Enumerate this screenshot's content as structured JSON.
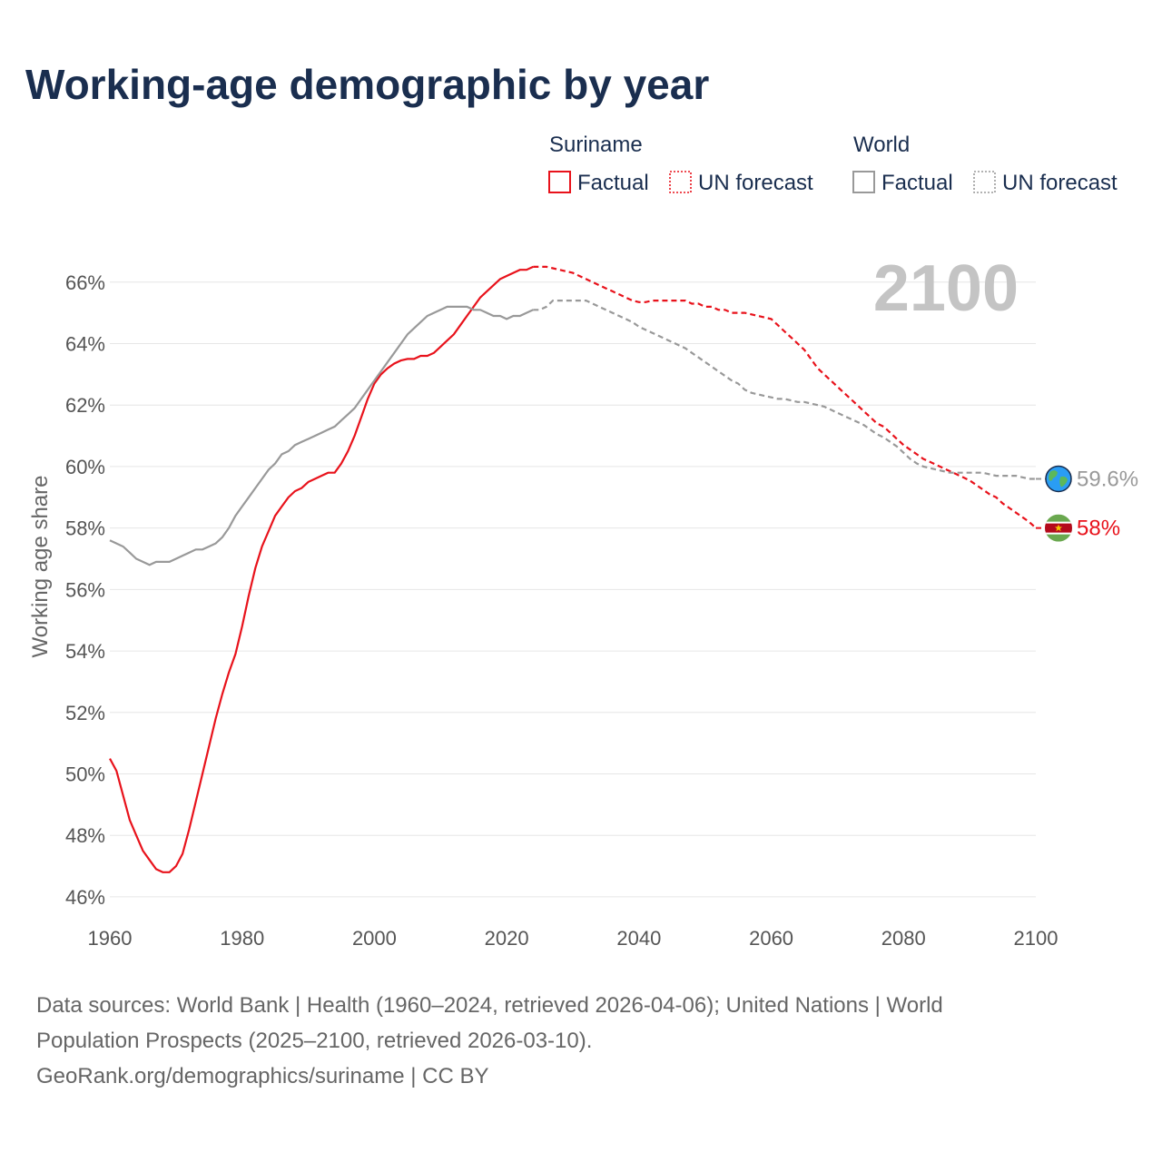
{
  "title": "Working-age demographic by year",
  "legend": {
    "groups": [
      {
        "name": "Suriname",
        "color": "#e8121b",
        "items": [
          "Factual",
          "UN forecast"
        ]
      },
      {
        "name": "World",
        "color": "#999999",
        "items": [
          "Factual",
          "UN forecast"
        ]
      }
    ]
  },
  "footer": {
    "line1": "Data sources: World Bank | Health (1960–2024, retrieved 2026-04-06); United Nations | World",
    "line2": "Population Prospects (2025–2100, retrieved 2026-03-10).",
    "line3": "GeoRank.org/demographics/suriname | CC BY"
  },
  "chart_data": {
    "type": "line",
    "title": "Working-age demographic by year",
    "year_label": "2100",
    "ylabel": "Working age share",
    "xlabel": "",
    "xlim": [
      1960,
      2100
    ],
    "ylim": [
      45.2,
      67.5
    ],
    "x_ticks": [
      1960,
      1980,
      2000,
      2020,
      2040,
      2060,
      2080,
      2100
    ],
    "y_ticks": [
      46,
      48,
      50,
      52,
      54,
      56,
      58,
      60,
      62,
      64,
      66
    ],
    "y_tick_suffix": "%",
    "series": [
      {
        "name": "Suriname",
        "color": "#e8121b",
        "forecast_from": 2024,
        "end_label": "58%",
        "icon": "suriname-flag-icon",
        "points": [
          [
            1960,
            50.5
          ],
          [
            1961,
            50.1
          ],
          [
            1962,
            49.3
          ],
          [
            1963,
            48.5
          ],
          [
            1964,
            48.0
          ],
          [
            1965,
            47.5
          ],
          [
            1966,
            47.2
          ],
          [
            1967,
            46.9
          ],
          [
            1968,
            46.8
          ],
          [
            1969,
            46.8
          ],
          [
            1970,
            47.0
          ],
          [
            1971,
            47.4
          ],
          [
            1972,
            48.2
          ],
          [
            1973,
            49.1
          ],
          [
            1974,
            50.0
          ],
          [
            1975,
            50.9
          ],
          [
            1976,
            51.8
          ],
          [
            1977,
            52.6
          ],
          [
            1978,
            53.3
          ],
          [
            1979,
            53.9
          ],
          [
            1980,
            54.8
          ],
          [
            1981,
            55.8
          ],
          [
            1982,
            56.7
          ],
          [
            1983,
            57.4
          ],
          [
            1984,
            57.9
          ],
          [
            1985,
            58.4
          ],
          [
            1986,
            58.7
          ],
          [
            1987,
            59.0
          ],
          [
            1988,
            59.2
          ],
          [
            1989,
            59.3
          ],
          [
            1990,
            59.5
          ],
          [
            1991,
            59.6
          ],
          [
            1992,
            59.7
          ],
          [
            1993,
            59.8
          ],
          [
            1994,
            59.8
          ],
          [
            1995,
            60.1
          ],
          [
            1996,
            60.5
          ],
          [
            1997,
            61.0
          ],
          [
            1998,
            61.6
          ],
          [
            1999,
            62.2
          ],
          [
            2000,
            62.7
          ],
          [
            2001,
            63.0
          ],
          [
            2002,
            63.2
          ],
          [
            2003,
            63.35
          ],
          [
            2004,
            63.45
          ],
          [
            2005,
            63.5
          ],
          [
            2006,
            63.5
          ],
          [
            2007,
            63.6
          ],
          [
            2008,
            63.6
          ],
          [
            2009,
            63.7
          ],
          [
            2010,
            63.9
          ],
          [
            2011,
            64.1
          ],
          [
            2012,
            64.3
          ],
          [
            2013,
            64.6
          ],
          [
            2014,
            64.9
          ],
          [
            2015,
            65.2
          ],
          [
            2016,
            65.5
          ],
          [
            2017,
            65.7
          ],
          [
            2018,
            65.9
          ],
          [
            2019,
            66.1
          ],
          [
            2020,
            66.2
          ],
          [
            2021,
            66.3
          ],
          [
            2022,
            66.4
          ],
          [
            2023,
            66.4
          ],
          [
            2024,
            66.5
          ],
          [
            2025,
            66.5
          ],
          [
            2026,
            66.5
          ],
          [
            2027,
            66.45
          ],
          [
            2028,
            66.4
          ],
          [
            2029,
            66.35
          ],
          [
            2030,
            66.3
          ],
          [
            2031,
            66.2
          ],
          [
            2032,
            66.1
          ],
          [
            2033,
            66.0
          ],
          [
            2034,
            65.9
          ],
          [
            2035,
            65.8
          ],
          [
            2036,
            65.7
          ],
          [
            2037,
            65.6
          ],
          [
            2038,
            65.5
          ],
          [
            2039,
            65.4
          ],
          [
            2040,
            65.35
          ],
          [
            2041,
            65.35
          ],
          [
            2042,
            65.4
          ],
          [
            2043,
            65.4
          ],
          [
            2044,
            65.4
          ],
          [
            2045,
            65.4
          ],
          [
            2046,
            65.4
          ],
          [
            2047,
            65.4
          ],
          [
            2048,
            65.3
          ],
          [
            2049,
            65.3
          ],
          [
            2050,
            65.2
          ],
          [
            2051,
            65.2
          ],
          [
            2052,
            65.1
          ],
          [
            2053,
            65.1
          ],
          [
            2054,
            65.0
          ],
          [
            2055,
            65.0
          ],
          [
            2056,
            65.0
          ],
          [
            2057,
            64.95
          ],
          [
            2058,
            64.9
          ],
          [
            2059,
            64.85
          ],
          [
            2060,
            64.8
          ],
          [
            2061,
            64.6
          ],
          [
            2062,
            64.4
          ],
          [
            2063,
            64.2
          ],
          [
            2064,
            64.0
          ],
          [
            2065,
            63.8
          ],
          [
            2066,
            63.5
          ],
          [
            2067,
            63.2
          ],
          [
            2068,
            63.0
          ],
          [
            2069,
            62.8
          ],
          [
            2070,
            62.6
          ],
          [
            2071,
            62.4
          ],
          [
            2072,
            62.2
          ],
          [
            2073,
            62.0
          ],
          [
            2074,
            61.8
          ],
          [
            2075,
            61.6
          ],
          [
            2076,
            61.4
          ],
          [
            2077,
            61.3
          ],
          [
            2078,
            61.1
          ],
          [
            2079,
            60.9
          ],
          [
            2080,
            60.7
          ],
          [
            2081,
            60.55
          ],
          [
            2082,
            60.4
          ],
          [
            2083,
            60.25
          ],
          [
            2084,
            60.15
          ],
          [
            2085,
            60.05
          ],
          [
            2086,
            59.95
          ],
          [
            2087,
            59.85
          ],
          [
            2088,
            59.75
          ],
          [
            2089,
            59.65
          ],
          [
            2090,
            59.55
          ],
          [
            2091,
            59.4
          ],
          [
            2092,
            59.25
          ],
          [
            2093,
            59.1
          ],
          [
            2094,
            59.0
          ],
          [
            2095,
            58.8
          ],
          [
            2096,
            58.65
          ],
          [
            2097,
            58.5
          ],
          [
            2098,
            58.35
          ],
          [
            2099,
            58.2
          ],
          [
            2100,
            58.0
          ]
        ]
      },
      {
        "name": "World",
        "color": "#999999",
        "forecast_from": 2024,
        "end_label": "59.6%",
        "icon": "globe-icon",
        "points": [
          [
            1960,
            57.6
          ],
          [
            1961,
            57.5
          ],
          [
            1962,
            57.4
          ],
          [
            1963,
            57.2
          ],
          [
            1964,
            57.0
          ],
          [
            1965,
            56.9
          ],
          [
            1966,
            56.8
          ],
          [
            1967,
            56.9
          ],
          [
            1968,
            56.9
          ],
          [
            1969,
            56.9
          ],
          [
            1970,
            57.0
          ],
          [
            1971,
            57.1
          ],
          [
            1972,
            57.2
          ],
          [
            1973,
            57.3
          ],
          [
            1974,
            57.3
          ],
          [
            1975,
            57.4
          ],
          [
            1976,
            57.5
          ],
          [
            1977,
            57.7
          ],
          [
            1978,
            58.0
          ],
          [
            1979,
            58.4
          ],
          [
            1980,
            58.7
          ],
          [
            1981,
            59.0
          ],
          [
            1982,
            59.3
          ],
          [
            1983,
            59.6
          ],
          [
            1984,
            59.9
          ],
          [
            1985,
            60.1
          ],
          [
            1986,
            60.4
          ],
          [
            1987,
            60.5
          ],
          [
            1988,
            60.7
          ],
          [
            1989,
            60.8
          ],
          [
            1990,
            60.9
          ],
          [
            1991,
            61.0
          ],
          [
            1992,
            61.1
          ],
          [
            1993,
            61.2
          ],
          [
            1994,
            61.3
          ],
          [
            1995,
            61.5
          ],
          [
            1996,
            61.7
          ],
          [
            1997,
            61.9
          ],
          [
            1998,
            62.2
          ],
          [
            1999,
            62.5
          ],
          [
            2000,
            62.8
          ],
          [
            2001,
            63.1
          ],
          [
            2002,
            63.4
          ],
          [
            2003,
            63.7
          ],
          [
            2004,
            64.0
          ],
          [
            2005,
            64.3
          ],
          [
            2006,
            64.5
          ],
          [
            2007,
            64.7
          ],
          [
            2008,
            64.9
          ],
          [
            2009,
            65.0
          ],
          [
            2010,
            65.1
          ],
          [
            2011,
            65.2
          ],
          [
            2012,
            65.2
          ],
          [
            2013,
            65.2
          ],
          [
            2014,
            65.2
          ],
          [
            2015,
            65.1
          ],
          [
            2016,
            65.1
          ],
          [
            2017,
            65.0
          ],
          [
            2018,
            64.9
          ],
          [
            2019,
            64.9
          ],
          [
            2020,
            64.8
          ],
          [
            2021,
            64.9
          ],
          [
            2022,
            64.9
          ],
          [
            2023,
            65.0
          ],
          [
            2024,
            65.1
          ],
          [
            2025,
            65.1
          ],
          [
            2026,
            65.2
          ],
          [
            2027,
            65.4
          ],
          [
            2028,
            65.4
          ],
          [
            2029,
            65.4
          ],
          [
            2030,
            65.4
          ],
          [
            2031,
            65.4
          ],
          [
            2032,
            65.4
          ],
          [
            2033,
            65.3
          ],
          [
            2034,
            65.2
          ],
          [
            2035,
            65.1
          ],
          [
            2036,
            65.0
          ],
          [
            2037,
            64.9
          ],
          [
            2038,
            64.8
          ],
          [
            2039,
            64.7
          ],
          [
            2040,
            64.55
          ],
          [
            2041,
            64.45
          ],
          [
            2042,
            64.35
          ],
          [
            2043,
            64.25
          ],
          [
            2044,
            64.15
          ],
          [
            2045,
            64.05
          ],
          [
            2046,
            63.95
          ],
          [
            2047,
            63.85
          ],
          [
            2048,
            63.7
          ],
          [
            2049,
            63.55
          ],
          [
            2050,
            63.4
          ],
          [
            2051,
            63.25
          ],
          [
            2052,
            63.1
          ],
          [
            2053,
            62.95
          ],
          [
            2054,
            62.8
          ],
          [
            2055,
            62.7
          ],
          [
            2056,
            62.5
          ],
          [
            2057,
            62.4
          ],
          [
            2058,
            62.35
          ],
          [
            2059,
            62.3
          ],
          [
            2060,
            62.25
          ],
          [
            2061,
            62.2
          ],
          [
            2062,
            62.2
          ],
          [
            2063,
            62.15
          ],
          [
            2064,
            62.1
          ],
          [
            2065,
            62.1
          ],
          [
            2066,
            62.05
          ],
          [
            2067,
            62.0
          ],
          [
            2068,
            61.95
          ],
          [
            2069,
            61.85
          ],
          [
            2070,
            61.75
          ],
          [
            2071,
            61.65
          ],
          [
            2072,
            61.55
          ],
          [
            2073,
            61.45
          ],
          [
            2074,
            61.35
          ],
          [
            2075,
            61.2
          ],
          [
            2076,
            61.05
          ],
          [
            2077,
            60.95
          ],
          [
            2078,
            60.8
          ],
          [
            2079,
            60.65
          ],
          [
            2080,
            60.45
          ],
          [
            2081,
            60.25
          ],
          [
            2082,
            60.1
          ],
          [
            2083,
            60.0
          ],
          [
            2084,
            59.95
          ],
          [
            2085,
            59.9
          ],
          [
            2086,
            59.85
          ],
          [
            2087,
            59.8
          ],
          [
            2088,
            59.8
          ],
          [
            2089,
            59.8
          ],
          [
            2090,
            59.8
          ],
          [
            2091,
            59.8
          ],
          [
            2092,
            59.8
          ],
          [
            2093,
            59.75
          ],
          [
            2094,
            59.7
          ],
          [
            2095,
            59.7
          ],
          [
            2096,
            59.7
          ],
          [
            2097,
            59.7
          ],
          [
            2098,
            59.65
          ],
          [
            2099,
            59.6
          ],
          [
            2100,
            59.6
          ]
        ]
      }
    ]
  }
}
